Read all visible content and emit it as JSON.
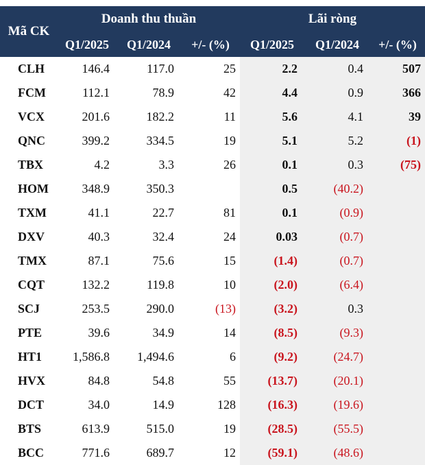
{
  "header": {
    "code_label": "Mã CK",
    "revenue_group": "Doanh thu thuần",
    "profit_group": "Lãi ròng",
    "sub_cols": [
      "Q1/2025",
      "Q1/2024",
      "+/- (%)",
      "Q1/2025",
      "Q1/2024",
      "+/- (%)"
    ]
  },
  "rows": [
    {
      "code": "CLH",
      "rev25": "146.4",
      "rev24": "117.0",
      "rev_pct": "25",
      "np25": "2.2",
      "np24": "0.4",
      "np_pct": "507"
    },
    {
      "code": "FCM",
      "rev25": "112.1",
      "rev24": "78.9",
      "rev_pct": "42",
      "np25": "4.4",
      "np24": "0.9",
      "np_pct": "366"
    },
    {
      "code": "VCX",
      "rev25": "201.6",
      "rev24": "182.2",
      "rev_pct": "11",
      "np25": "5.6",
      "np24": "4.1",
      "np_pct": "39"
    },
    {
      "code": "QNC",
      "rev25": "399.2",
      "rev24": "334.5",
      "rev_pct": "19",
      "np25": "5.1",
      "np24": "5.2",
      "np_pct": "(1)"
    },
    {
      "code": "TBX",
      "rev25": "4.2",
      "rev24": "3.3",
      "rev_pct": "26",
      "np25": "0.1",
      "np24": "0.3",
      "np_pct": "(75)"
    },
    {
      "code": "HOM",
      "rev25": "348.9",
      "rev24": "350.3",
      "rev_pct": "",
      "np25": "0.5",
      "np24": "(40.2)",
      "np_pct": ""
    },
    {
      "code": "TXM",
      "rev25": "41.1",
      "rev24": "22.7",
      "rev_pct": "81",
      "np25": "0.1",
      "np24": "(0.9)",
      "np_pct": ""
    },
    {
      "code": "DXV",
      "rev25": "40.3",
      "rev24": "32.4",
      "rev_pct": "24",
      "np25": "0.03",
      "np24": "(0.7)",
      "np_pct": ""
    },
    {
      "code": "TMX",
      "rev25": "87.1",
      "rev24": "75.6",
      "rev_pct": "15",
      "np25": "(1.4)",
      "np24": "(0.7)",
      "np_pct": ""
    },
    {
      "code": "CQT",
      "rev25": "132.2",
      "rev24": "119.8",
      "rev_pct": "10",
      "np25": "(2.0)",
      "np24": "(6.4)",
      "np_pct": ""
    },
    {
      "code": "SCJ",
      "rev25": "253.5",
      "rev24": "290.0",
      "rev_pct": "(13)",
      "np25": "(3.2)",
      "np24": "0.3",
      "np_pct": ""
    },
    {
      "code": "PTE",
      "rev25": "39.6",
      "rev24": "34.9",
      "rev_pct": "14",
      "np25": "(8.5)",
      "np24": "(9.3)",
      "np_pct": ""
    },
    {
      "code": "HT1",
      "rev25": "1,586.8",
      "rev24": "1,494.6",
      "rev_pct": "6",
      "np25": "(9.2)",
      "np24": "(24.7)",
      "np_pct": ""
    },
    {
      "code": "HVX",
      "rev25": "84.8",
      "rev24": "54.8",
      "rev_pct": "55",
      "np25": "(13.7)",
      "np24": "(20.1)",
      "np_pct": ""
    },
    {
      "code": "DCT",
      "rev25": "34.0",
      "rev24": "14.9",
      "rev_pct": "128",
      "np25": "(16.3)",
      "np24": "(19.6)",
      "np_pct": ""
    },
    {
      "code": "BTS",
      "rev25": "613.9",
      "rev24": "515.0",
      "rev_pct": "19",
      "np25": "(28.5)",
      "np24": "(55.5)",
      "np_pct": ""
    },
    {
      "code": "BCC",
      "rev25": "771.6",
      "rev24": "689.7",
      "rev_pct": "12",
      "np25": "(59.1)",
      "np24": "(48.6)",
      "np_pct": ""
    }
  ]
}
